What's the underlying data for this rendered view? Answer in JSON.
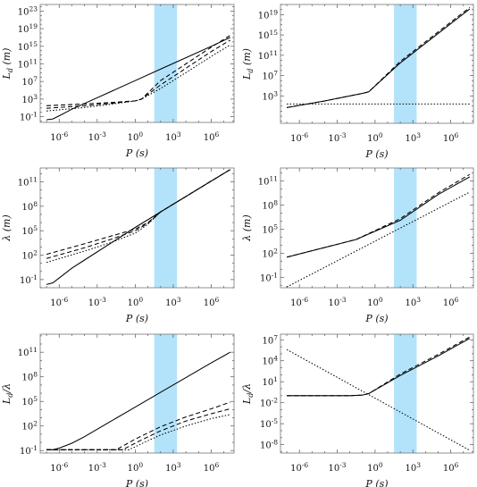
{
  "chart_data": [
    {
      "type": "line",
      "xlabel": "P (s)",
      "ylabel": "L_d (m)",
      "x_log_range": [
        -7.5,
        7.8
      ],
      "y_log_range": [
        -2.3,
        24.5
      ],
      "x_ticks": [
        {
          "e": -6,
          "label": "10^-6"
        },
        {
          "e": -3,
          "label": "10^-3"
        },
        {
          "e": 0,
          "label": "10^0"
        },
        {
          "e": 3,
          "label": "10^3"
        },
        {
          "e": 6,
          "label": "10^6"
        }
      ],
      "y_ticks": [
        {
          "e": -1,
          "label": "10^-1"
        },
        {
          "e": 3,
          "label": "10^3"
        },
        {
          "e": 7,
          "label": "10^7"
        },
        {
          "e": 11,
          "label": "10^11"
        },
        {
          "e": 15,
          "label": "10^15"
        },
        {
          "e": 19,
          "label": "10^19"
        },
        {
          "e": 23,
          "label": "10^23"
        }
      ],
      "shaded_band": {
        "x_log": [
          1.5,
          3.3
        ]
      },
      "series": [
        {
          "style": "solid",
          "log_x": [
            -7,
            -6.5,
            -6,
            -5,
            -4,
            -2,
            0,
            2,
            4,
            6,
            7.5
          ],
          "log_y": [
            -1.7,
            -1.5,
            -0.8,
            0.7,
            2.0,
            4.6,
            7.2,
            9.8,
            12.4,
            15.0,
            17.0
          ]
        },
        {
          "style": "dashed",
          "log_x": [
            -7,
            -4,
            -2,
            0,
            0.5,
            2,
            4,
            6,
            7.5
          ],
          "log_y": [
            1.5,
            1.9,
            2.2,
            2.6,
            3.0,
            7.2,
            11.0,
            14.8,
            17.5
          ]
        },
        {
          "style": "dashed",
          "log_x": [
            -7,
            -4,
            -2,
            0,
            0.5,
            2,
            4,
            6,
            7.5
          ],
          "log_y": [
            0.9,
            1.5,
            2.0,
            2.6,
            3.0,
            6.2,
            10.0,
            13.8,
            16.4
          ]
        },
        {
          "style": "dotted",
          "log_x": [
            -7,
            -4,
            -2,
            0,
            0.5,
            2,
            4,
            6,
            7.5
          ],
          "log_y": [
            0.3,
            1.1,
            1.8,
            2.6,
            3.0,
            5.4,
            9.0,
            12.7,
            15.3
          ]
        }
      ]
    },
    {
      "type": "line",
      "xlabel": "P (s)",
      "ylabel": "L_d (m)",
      "x_log_range": [
        -7.5,
        7.8
      ],
      "y_log_range": [
        -2.4,
        21
      ],
      "x_ticks": [
        {
          "e": -6,
          "label": "10^-6"
        },
        {
          "e": -3,
          "label": "10^-3"
        },
        {
          "e": 0,
          "label": "10^0"
        },
        {
          "e": 3,
          "label": "10^3"
        },
        {
          "e": 6,
          "label": "10^6"
        }
      ],
      "y_ticks": [
        {
          "e": 3,
          "label": "10^3"
        },
        {
          "e": 7,
          "label": "10^7"
        },
        {
          "e": 11,
          "label": "10^11"
        },
        {
          "e": 15,
          "label": "10^15"
        },
        {
          "e": 19,
          "label": "10^19"
        }
      ],
      "shaded_band": {
        "x_log": [
          1.5,
          3.3
        ]
      },
      "series": [
        {
          "style": "solid",
          "log_x": [
            -7,
            -4,
            -1,
            -0.5,
            2,
            5,
            7.5
          ],
          "log_y": [
            0.7,
            2.0,
            3.5,
            3.8,
            9.5,
            15.3,
            20.1
          ]
        },
        {
          "style": "dashed",
          "log_x": [
            -7,
            -4,
            -1,
            -0.5,
            2,
            5,
            7.5
          ],
          "log_y": [
            0.7,
            2.0,
            3.5,
            3.8,
            9.8,
            15.6,
            20.4
          ]
        },
        {
          "style": "dotted",
          "log_x": [
            -7,
            7.5
          ],
          "log_y": [
            1.4,
            1.4
          ]
        }
      ]
    },
    {
      "type": "line",
      "xlabel": "P (s)",
      "ylabel": "λ (m)",
      "x_log_range": [
        -7.5,
        7.8
      ],
      "y_log_range": [
        -2,
        12.7
      ],
      "x_ticks": [
        {
          "e": -6,
          "label": "10^-6"
        },
        {
          "e": -3,
          "label": "10^-3"
        },
        {
          "e": 0,
          "label": "10^0"
        },
        {
          "e": 3,
          "label": "10^3"
        },
        {
          "e": 6,
          "label": "10^6"
        }
      ],
      "y_ticks": [
        {
          "e": -1,
          "label": "10^-1"
        },
        {
          "e": 2,
          "label": "10^2"
        },
        {
          "e": 5,
          "label": "10^5"
        },
        {
          "e": 8,
          "label": "10^8"
        },
        {
          "e": 11,
          "label": "10^11"
        }
      ],
      "shaded_band": {
        "x_log": [
          1.5,
          3.3
        ]
      },
      "series": [
        {
          "style": "solid",
          "log_x": [
            -7,
            -6.5,
            -6,
            -5,
            -4,
            -2,
            0,
            2,
            4,
            6,
            7.5
          ],
          "log_y": [
            -1.6,
            -1.4,
            -0.8,
            0.4,
            1.4,
            3.4,
            5.4,
            7.3,
            9.2,
            11.1,
            12.5
          ]
        },
        {
          "style": "dashed",
          "log_x": [
            -7,
            -4,
            -2,
            0,
            1,
            2,
            4,
            6,
            7.5
          ],
          "log_y": [
            2.1,
            3.4,
            4.3,
            5.2,
            6.0,
            7.3,
            9.2,
            11.1,
            12.5
          ]
        },
        {
          "style": "dashed",
          "log_x": [
            -7,
            -4,
            -2,
            0,
            1,
            2,
            4,
            6,
            7.5
          ],
          "log_y": [
            1.6,
            2.9,
            3.9,
            5.0,
            5.9,
            7.3,
            9.2,
            11.1,
            12.5
          ]
        },
        {
          "style": "dotted",
          "log_x": [
            -7,
            -4,
            -2,
            0,
            1,
            2,
            4,
            6,
            7.5
          ],
          "log_y": [
            1.1,
            2.5,
            3.5,
            4.7,
            5.8,
            7.3,
            9.2,
            11.1,
            12.5
          ]
        }
      ]
    },
    {
      "type": "line",
      "xlabel": "P (s)",
      "ylabel": "λ (m)",
      "x_log_range": [
        -7.5,
        7.8
      ],
      "y_log_range": [
        -2.3,
        12.6
      ],
      "x_ticks": [
        {
          "e": -6,
          "label": "10^-6"
        },
        {
          "e": -3,
          "label": "10^-3"
        },
        {
          "e": 0,
          "label": "10^0"
        },
        {
          "e": 3,
          "label": "10^3"
        },
        {
          "e": 6,
          "label": "10^6"
        }
      ],
      "y_ticks": [
        {
          "e": -1,
          "label": "10^-1"
        },
        {
          "e": 2,
          "label": "10^2"
        },
        {
          "e": 5,
          "label": "10^5"
        },
        {
          "e": 8,
          "label": "10^8"
        },
        {
          "e": 11,
          "label": "10^11"
        }
      ],
      "shaded_band": {
        "x_log": [
          1.5,
          3.3
        ]
      },
      "series": [
        {
          "style": "solid",
          "log_x": [
            -7,
            -4,
            -1.5,
            2,
            5,
            7.5
          ],
          "log_y": [
            1.5,
            2.7,
            3.7,
            6.1,
            9.3,
            11.5
          ]
        },
        {
          "style": "dashed",
          "log_x": [
            -7,
            -4,
            -1.5,
            2,
            5,
            7.5
          ],
          "log_y": [
            1.5,
            2.7,
            3.7,
            6.3,
            9.5,
            11.8
          ]
        },
        {
          "style": "dotted",
          "log_x": [
            -7,
            7.5
          ],
          "log_y": [
            -2.2,
            9.6
          ]
        }
      ]
    },
    {
      "type": "line",
      "xlabel": "P (s)",
      "ylabel": "L_d/λ",
      "x_log_range": [
        -7.5,
        7.8
      ],
      "y_log_range": [
        -1.3,
        13.2
      ],
      "x_ticks": [
        {
          "e": -6,
          "label": "10^-6"
        },
        {
          "e": -3,
          "label": "10^-3"
        },
        {
          "e": 0,
          "label": "10^0"
        },
        {
          "e": 3,
          "label": "10^3"
        },
        {
          "e": 6,
          "label": "10^6"
        }
      ],
      "y_ticks": [
        {
          "e": -1,
          "label": "10^-1"
        },
        {
          "e": 2,
          "label": "10^2"
        },
        {
          "e": 5,
          "label": "10^5"
        },
        {
          "e": 8,
          "label": "10^8"
        },
        {
          "e": 11,
          "label": "10^11"
        }
      ],
      "shaded_band": {
        "x_log": [
          1.5,
          3.3
        ]
      },
      "series": [
        {
          "style": "solid",
          "log_x": [
            -7,
            -6.5,
            -6,
            -5,
            -4,
            -2,
            0,
            2,
            4,
            6,
            7.5
          ],
          "log_y": [
            -0.9,
            -0.9,
            -0.7,
            -0.1,
            0.7,
            2.5,
            4.3,
            6.1,
            7.9,
            9.7,
            11.0
          ]
        },
        {
          "style": "dashed",
          "log_x": [
            -7,
            -6.3,
            -4,
            -2,
            -1.5,
            0,
            2,
            4,
            6,
            7.5
          ],
          "log_y": [
            -0.9,
            -0.9,
            -0.9,
            -0.9,
            -0.9,
            0.4,
            1.9,
            3.1,
            4.1,
            4.9
          ]
        },
        {
          "style": "dashed",
          "log_x": [
            -7,
            -6.3,
            -4,
            -2,
            -1,
            0.5,
            2,
            4,
            6,
            7.5
          ],
          "log_y": [
            -0.9,
            -0.9,
            -0.9,
            -0.9,
            -0.9,
            0.3,
            1.4,
            2.6,
            3.5,
            4.1
          ]
        },
        {
          "style": "dotted",
          "log_x": [
            -7,
            -6.3,
            -4,
            -2,
            -0.5,
            1,
            2,
            4,
            6,
            7.5
          ],
          "log_y": [
            -0.9,
            -0.9,
            -0.9,
            -0.9,
            -0.9,
            0.2,
            0.9,
            2.0,
            2.9,
            3.4
          ]
        }
      ]
    },
    {
      "type": "line",
      "xlabel": "P (s)",
      "ylabel": "L_d/λ",
      "x_log_range": [
        -7.5,
        7.8
      ],
      "y_log_range": [
        -9.2,
        7.8
      ],
      "x_ticks": [
        {
          "e": -6,
          "label": "10^-6"
        },
        {
          "e": -3,
          "label": "10^-3"
        },
        {
          "e": 0,
          "label": "10^0"
        },
        {
          "e": 3,
          "label": "10^3"
        },
        {
          "e": 6,
          "label": "10^6"
        }
      ],
      "y_ticks": [
        {
          "e": -8,
          "label": "10^-8"
        },
        {
          "e": -5,
          "label": "10^-5"
        },
        {
          "e": -2,
          "label": "10^-2"
        },
        {
          "e": 1,
          "label": "10^1"
        },
        {
          "e": 4,
          "label": "10^4"
        },
        {
          "e": 7,
          "label": "10^7"
        }
      ],
      "shaded_band": {
        "x_log": [
          1.5,
          3.3
        ]
      },
      "series": [
        {
          "style": "solid",
          "log_x": [
            -7,
            -4,
            -2,
            -1,
            -0.5,
            2,
            5,
            7.5
          ],
          "log_y": [
            -1.0,
            -1.0,
            -1.0,
            -0.9,
            -0.7,
            1.9,
            4.7,
            7.2
          ]
        },
        {
          "style": "dashed",
          "log_x": [
            -7,
            -4,
            -2,
            -1,
            -0.5,
            2,
            5,
            7.5
          ],
          "log_y": [
            -1.0,
            -1.0,
            -1.0,
            -0.9,
            -0.7,
            2.1,
            4.9,
            7.4
          ]
        },
        {
          "style": "dotted",
          "log_x": [
            -7,
            7.5
          ],
          "log_y": [
            5.6,
            -8.8
          ]
        }
      ]
    }
  ]
}
